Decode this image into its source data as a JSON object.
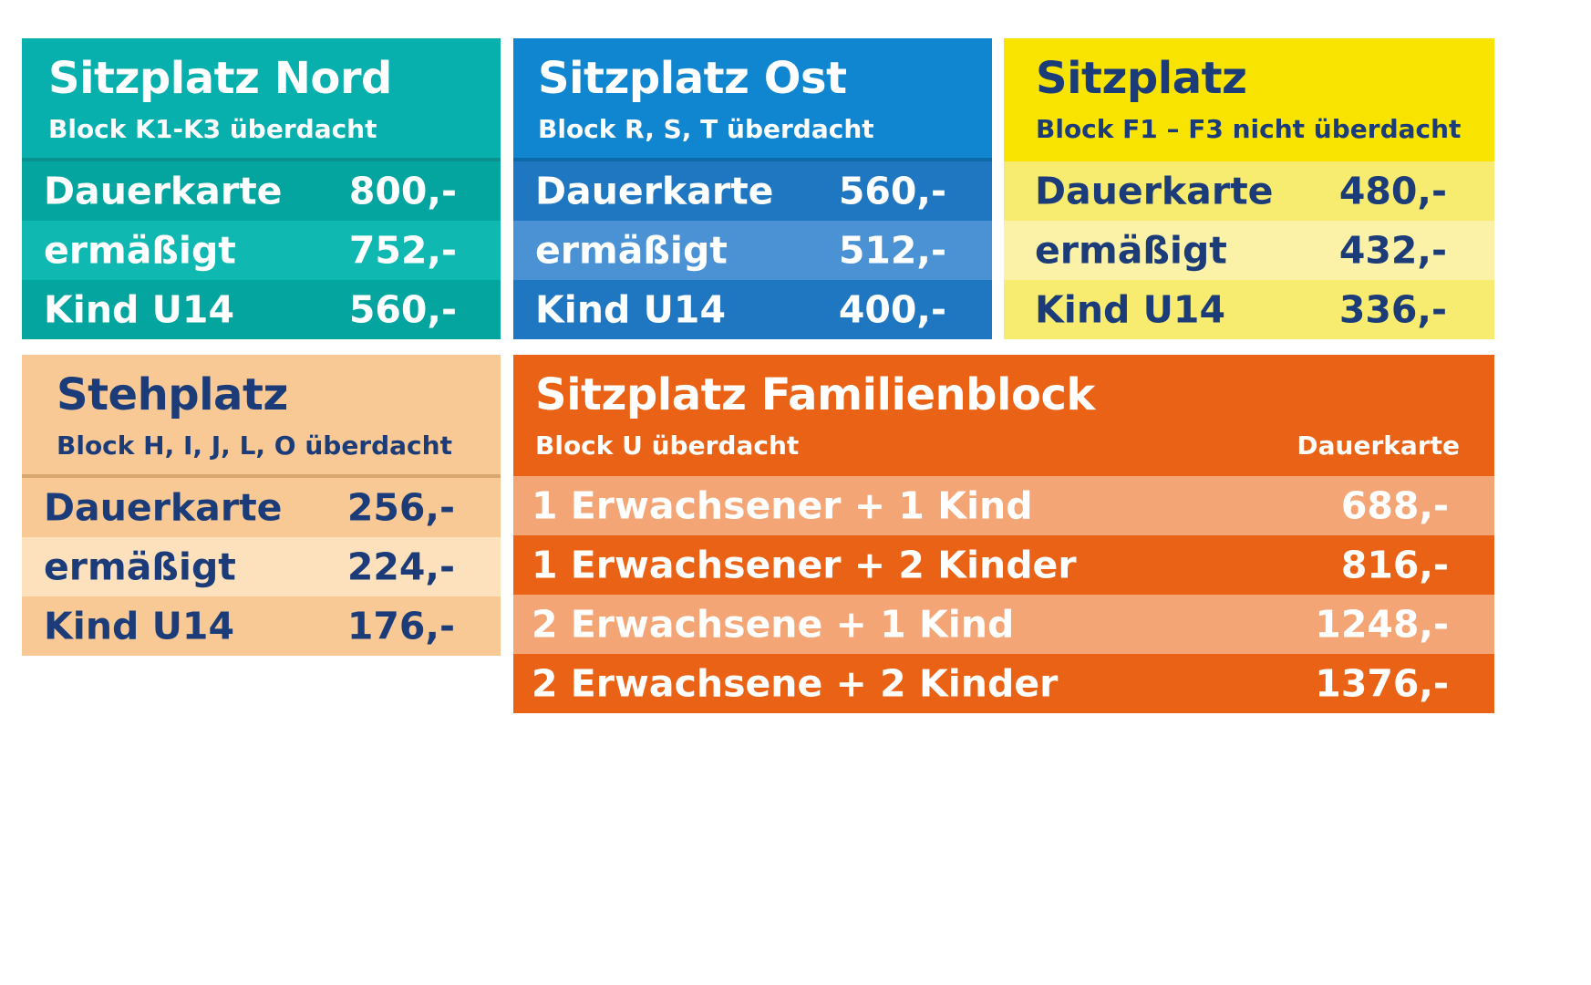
{
  "cards": {
    "nord": {
      "title": "Sitzplatz Nord",
      "subtitle": "Block K1-K3 überdacht",
      "rows": [
        {
          "label": "Dauerkarte",
          "price": "800,-"
        },
        {
          "label": "ermäßigt",
          "price": "752,-"
        },
        {
          "label": "Kind U14",
          "price": "560,-"
        }
      ]
    },
    "ost": {
      "title": "Sitzplatz Ost",
      "subtitle": "Block  R, S, T  überdacht",
      "rows": [
        {
          "label": "Dauerkarte",
          "price": "560,-"
        },
        {
          "label": "ermäßigt",
          "price": "512,-"
        },
        {
          "label": "Kind U14",
          "price": "400,-"
        }
      ]
    },
    "gelb": {
      "title": "Sitzplatz",
      "subtitle": "Block F1 – F3  nicht überdacht",
      "rows": [
        {
          "label": "Dauerkarte",
          "price": "480,-"
        },
        {
          "label": "ermäßigt",
          "price": "432,-"
        },
        {
          "label": "Kind U14",
          "price": "336,-"
        }
      ]
    },
    "steh": {
      "title": "Stehplatz",
      "subtitle": "Block H, I, J, L, O  überdacht",
      "rows": [
        {
          "label": "Dauerkarte",
          "price": "256,-"
        },
        {
          "label": "ermäßigt",
          "price": "224,-"
        },
        {
          "label": "Kind U14",
          "price": "176,-"
        }
      ]
    },
    "familie": {
      "title": "Sitzplatz Familienblock",
      "subtitle": "Block U  überdacht",
      "column_head": "Dauerkarte",
      "rows": [
        {
          "label": "1 Erwachsener + 1 Kind",
          "price": "688,-"
        },
        {
          "label": "1 Erwachsener + 2 Kinder",
          "price": "816,-"
        },
        {
          "label": "2 Erwachsene + 1 Kind",
          "price": "1248,-"
        },
        {
          "label": "2 Erwachsene + 2 Kinder",
          "price": "1376,-"
        }
      ]
    }
  },
  "colors": {
    "teal": "#07b0ac",
    "blue": "#1186d0",
    "yellow": "#f8e400",
    "peach": "#f8c994",
    "orange": "#e96215",
    "navy_text": "#1b3c78",
    "white_text": "#ffffff"
  }
}
